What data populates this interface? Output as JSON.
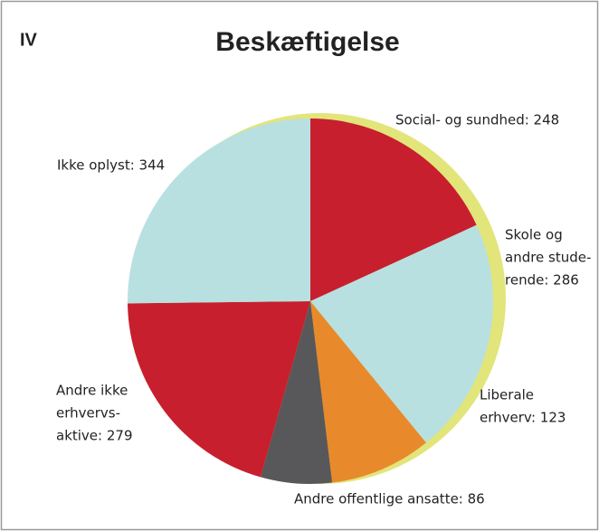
{
  "chart_data": {
    "type": "pie",
    "title": "Beskæftigelse",
    "corner_label": "IV",
    "labels": [
      [
        "Social- og sundhed: 248"
      ],
      [
        "Skole og",
        "andre stude-",
        "rende: 286"
      ],
      [
        "Liberale",
        "erhverv: 123"
      ],
      [
        "Andre offentlige ansatte: 86"
      ],
      [
        "Andre ikke",
        "erhvervs-",
        "aktive: 279"
      ],
      [
        "Ikke oplyst: 344"
      ]
    ],
    "values": [
      248,
      286,
      123,
      86,
      279,
      344
    ],
    "colors": [
      "#c71f2e",
      "#b8e0e1",
      "#e88a2b",
      "#58585a",
      "#c71f2e",
      "#b8e0e1"
    ],
    "shadow_color": "#e2e57a"
  }
}
